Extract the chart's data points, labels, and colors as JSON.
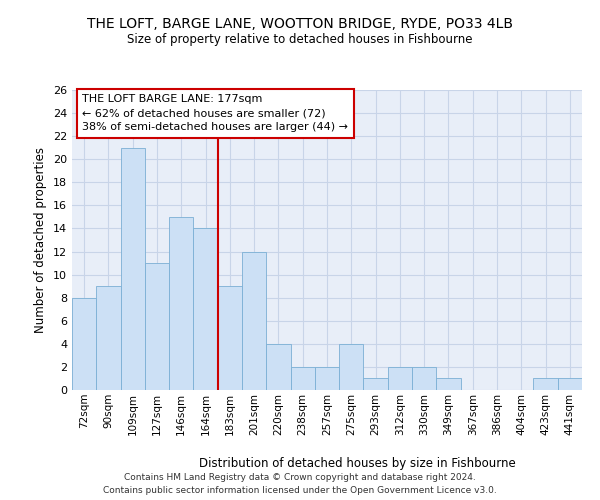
{
  "title": "THE LOFT, BARGE LANE, WOOTTON BRIDGE, RYDE, PO33 4LB",
  "subtitle": "Size of property relative to detached houses in Fishbourne",
  "xlabel": "Distribution of detached houses by size in Fishbourne",
  "ylabel": "Number of detached properties",
  "categories": [
    "72sqm",
    "90sqm",
    "109sqm",
    "127sqm",
    "146sqm",
    "164sqm",
    "183sqm",
    "201sqm",
    "220sqm",
    "238sqm",
    "257sqm",
    "275sqm",
    "293sqm",
    "312sqm",
    "330sqm",
    "349sqm",
    "367sqm",
    "386sqm",
    "404sqm",
    "423sqm",
    "441sqm"
  ],
  "values": [
    8,
    9,
    21,
    11,
    15,
    14,
    9,
    12,
    4,
    2,
    2,
    4,
    1,
    2,
    2,
    1,
    0,
    0,
    0,
    1,
    1
  ],
  "bar_color": "#cce0f5",
  "bar_edgecolor": "#7bafd4",
  "vline_index": 6,
  "vline_color": "#cc0000",
  "box_text_line1": "THE LOFT BARGE LANE: 177sqm",
  "box_text_line2": "← 62% of detached houses are smaller (72)",
  "box_text_line3": "38% of semi-detached houses are larger (44) →",
  "box_color": "#cc0000",
  "ylim": [
    0,
    26
  ],
  "yticks": [
    0,
    2,
    4,
    6,
    8,
    10,
    12,
    14,
    16,
    18,
    20,
    22,
    24,
    26
  ],
  "grid_color": "#c8d4e8",
  "background_color": "#e8eef8",
  "footer_line1": "Contains HM Land Registry data © Crown copyright and database right 2024.",
  "footer_line2": "Contains public sector information licensed under the Open Government Licence v3.0."
}
